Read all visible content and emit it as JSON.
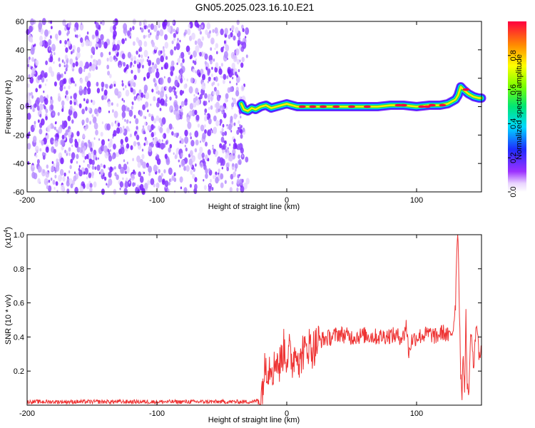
{
  "title": "GN05.2025.023.16.10.E21",
  "colors": {
    "signal_line": "#ee3333",
    "noise_purple": "#8a2be2"
  },
  "colorbar": {
    "label": "Normalized spectral amplitude",
    "ticks": [
      "0.0",
      "0.2",
      "0.4",
      "0.6",
      "0.8"
    ],
    "range": [
      0,
      1
    ],
    "colormap": "purple-blue-cyan-green-yellow-red"
  },
  "chart_data": [
    {
      "type": "heatmap",
      "xlabel": "Height of straight line (km)",
      "ylabel": "Frequency (Hz)",
      "xlim": [
        -200,
        150
      ],
      "ylim": [
        -60,
        60
      ],
      "x_ticks": [
        "-200",
        "-100",
        "0",
        "100"
      ],
      "y_ticks": [
        "60",
        "40",
        "20",
        "0",
        "-20",
        "-40",
        "-60"
      ],
      "noise_region_x": [
        -200,
        -30
      ],
      "ridge": {
        "x": [
          -35,
          -33,
          -30,
          -27,
          -24,
          -20,
          -16,
          -12,
          -8,
          -4,
          0,
          4,
          8,
          12,
          20,
          30,
          40,
          50,
          60,
          70,
          80,
          90,
          100,
          110,
          118,
          124,
          128,
          130,
          132,
          134,
          136,
          140,
          144,
          148,
          150
        ],
        "y": [
          2,
          -2,
          -3,
          -1,
          -2,
          0,
          1,
          -1,
          0,
          1,
          2,
          1,
          0,
          0,
          0,
          0,
          0,
          0,
          0,
          0,
          1,
          1,
          0,
          1,
          1,
          2,
          4,
          5,
          8,
          14,
          12,
          9,
          7,
          6,
          6
        ]
      }
    },
    {
      "type": "line",
      "xlabel": "Height of straight line (km)",
      "ylabel": "SNR (10 * v/v)",
      "y_multiplier": "(x10",
      "y_multiplier_exp": "4",
      "xlim": [
        -200,
        150
      ],
      "ylim": [
        0,
        1.0
      ],
      "x_ticks": [
        "-200",
        "-100",
        "0",
        "100"
      ],
      "y_ticks": [
        "1.0",
        "0.8",
        "0.6",
        "0.4",
        "0.2"
      ],
      "series": [
        {
          "x": [
            -200,
            -180,
            -160,
            -140,
            -120,
            -100,
            -80,
            -60,
            -40,
            -25,
            -20,
            -18,
            -16,
            -14,
            -12,
            -10,
            -8,
            -6,
            -4,
            -2,
            0,
            2,
            4,
            6,
            8,
            10,
            12,
            14,
            16,
            20,
            25,
            30,
            35,
            40,
            50,
            60,
            70,
            80,
            90,
            92,
            94,
            96,
            100,
            105,
            110,
            115,
            120,
            125,
            128,
            130,
            131,
            132,
            133,
            134,
            135,
            136,
            137,
            138,
            139,
            140,
            142,
            144,
            146,
            148,
            150
          ],
          "y": [
            0.02,
            0.02,
            0.02,
            0.02,
            0.02,
            0.02,
            0.02,
            0.02,
            0.02,
            0.02,
            0.04,
            0.15,
            0.25,
            0.22,
            0.26,
            0.2,
            0.3,
            0.22,
            0.28,
            0.34,
            0.28,
            0.31,
            0.25,
            0.3,
            0.35,
            0.22,
            0.33,
            0.3,
            0.36,
            0.33,
            0.38,
            0.39,
            0.4,
            0.42,
            0.4,
            0.41,
            0.4,
            0.41,
            0.4,
            0.48,
            0.3,
            0.38,
            0.4,
            0.41,
            0.42,
            0.4,
            0.43,
            0.4,
            0.44,
            0.6,
            0.95,
            1.0,
            0.55,
            0.2,
            0.05,
            0.3,
            0.08,
            0.52,
            0.1,
            0.06,
            0.45,
            0.2,
            0.5,
            0.3,
            0.35
          ]
        }
      ]
    }
  ]
}
